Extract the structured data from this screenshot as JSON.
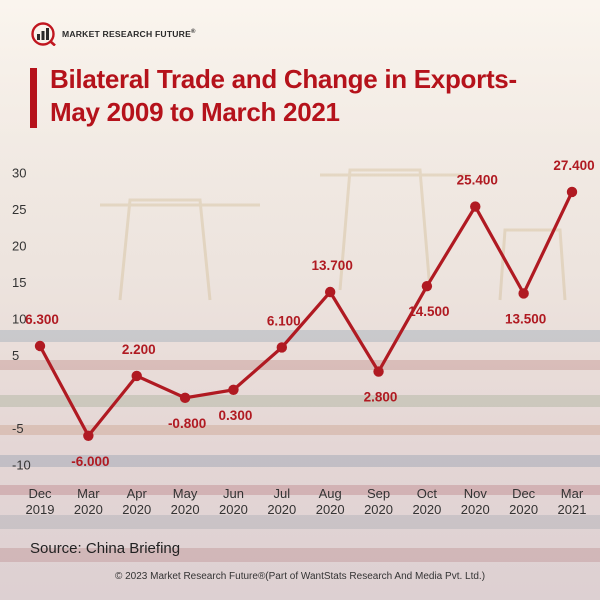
{
  "brand": {
    "name": "MARKET RESEARCH FUTURE",
    "registered": "®"
  },
  "title": "Bilateral Trade and Change in Exports- May 2009 to March 2021",
  "source": "Source: China Briefing",
  "copyright": "© 2023 Market Research Future®(Part of WantStats Research And Media Pvt. Ltd.)",
  "colors": {
    "accent": "#b5121b",
    "line": "#b01a22",
    "text": "#222222"
  },
  "chart_data": {
    "type": "line",
    "categories": [
      [
        "Dec",
        "2019"
      ],
      [
        "Mar",
        "2020"
      ],
      [
        "Apr",
        "2020"
      ],
      [
        "May",
        "2020"
      ],
      [
        "Jun",
        "2020"
      ],
      [
        "Jul",
        "2020"
      ],
      [
        "Aug",
        "2020"
      ],
      [
        "Sep",
        "2020"
      ],
      [
        "Oct",
        "2020"
      ],
      [
        "Nov",
        "2020"
      ],
      [
        "Dec",
        "2020"
      ],
      [
        "Mar",
        "2021"
      ]
    ],
    "values": [
      6.3,
      -6.0,
      2.2,
      -0.8,
      0.3,
      6.1,
      13.7,
      2.8,
      14.5,
      25.4,
      13.5,
      27.4
    ],
    "data_labels": [
      "6.300",
      "-6.000",
      "2.200",
      "-0.800",
      "0.300",
      "6.100",
      "13.700",
      "2.800",
      "14.500",
      "25.400",
      "13.500",
      "27.400"
    ],
    "label_positions": [
      "above",
      "below",
      "above",
      "below",
      "below",
      "above",
      "above",
      "below",
      "below",
      "above",
      "below",
      "above"
    ],
    "yticks": [
      30,
      25,
      20,
      15,
      10,
      5,
      "",
      -5,
      -10
    ],
    "ylim": [
      -10,
      30
    ],
    "xlabel": "",
    "ylabel": "",
    "grid": false,
    "legend": "none"
  }
}
